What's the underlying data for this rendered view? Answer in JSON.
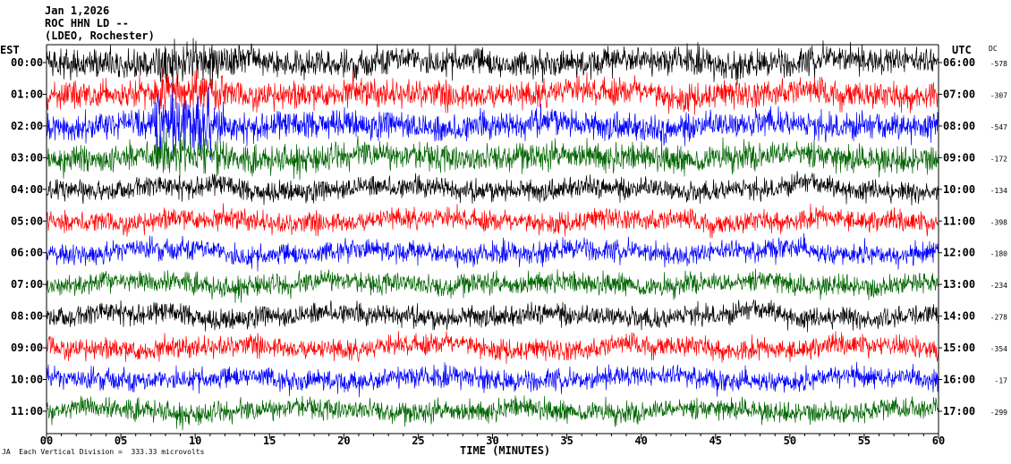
{
  "header": {
    "date": "Jan 1,2026",
    "station": "ROC HHN LD --",
    "network": "(LDEO, Rochester)"
  },
  "axes": {
    "left_timezone": "EST",
    "right_timezone": "UTC",
    "dc_label": "DC",
    "xlabel": "TIME (MINUTES)"
  },
  "footer": {
    "mark": "JA",
    "scale_text": "Each Vertical Division =  333.33 microvolts"
  },
  "chart_data": {
    "type": "line",
    "title": "",
    "xlabel": "TIME (MINUTES)",
    "ylabel": "",
    "xlim": [
      0,
      60
    ],
    "x_ticks": [
      "00",
      "05",
      "10",
      "15",
      "20",
      "25",
      "30",
      "35",
      "40",
      "45",
      "50",
      "55",
      "60"
    ],
    "series_colors": [
      "#000000",
      "#ff0000",
      "#0000ff",
      "#006400"
    ],
    "rows": [
      {
        "est": "00:00",
        "utc": "06:00",
        "dc": "-578",
        "color": "#000000"
      },
      {
        "est": "01:00",
        "utc": "07:00",
        "dc": "-307",
        "color": "#ff0000"
      },
      {
        "est": "02:00",
        "utc": "08:00",
        "dc": "-547",
        "color": "#0000ff"
      },
      {
        "est": "03:00",
        "utc": "09:00",
        "dc": "-172",
        "color": "#006400"
      },
      {
        "est": "04:00",
        "utc": "10:00",
        "dc": "-134",
        "color": "#000000"
      },
      {
        "est": "05:00",
        "utc": "11:00",
        "dc": "-398",
        "color": "#ff0000"
      },
      {
        "est": "06:00",
        "utc": "12:00",
        "dc": "-180",
        "color": "#0000ff"
      },
      {
        "est": "07:00",
        "utc": "13:00",
        "dc": "-234",
        "color": "#006400"
      },
      {
        "est": "08:00",
        "utc": "14:00",
        "dc": "-278",
        "color": "#000000"
      },
      {
        "est": "09:00",
        "utc": "15:00",
        "dc": "-354",
        "color": "#ff0000"
      },
      {
        "est": "10:00",
        "utc": "16:00",
        "dc": "-17",
        "color": "#0000ff"
      },
      {
        "est": "11:00",
        "utc": "17:00",
        "dc": "-299",
        "color": "#006400"
      }
    ],
    "grid": false,
    "legend": "none"
  }
}
